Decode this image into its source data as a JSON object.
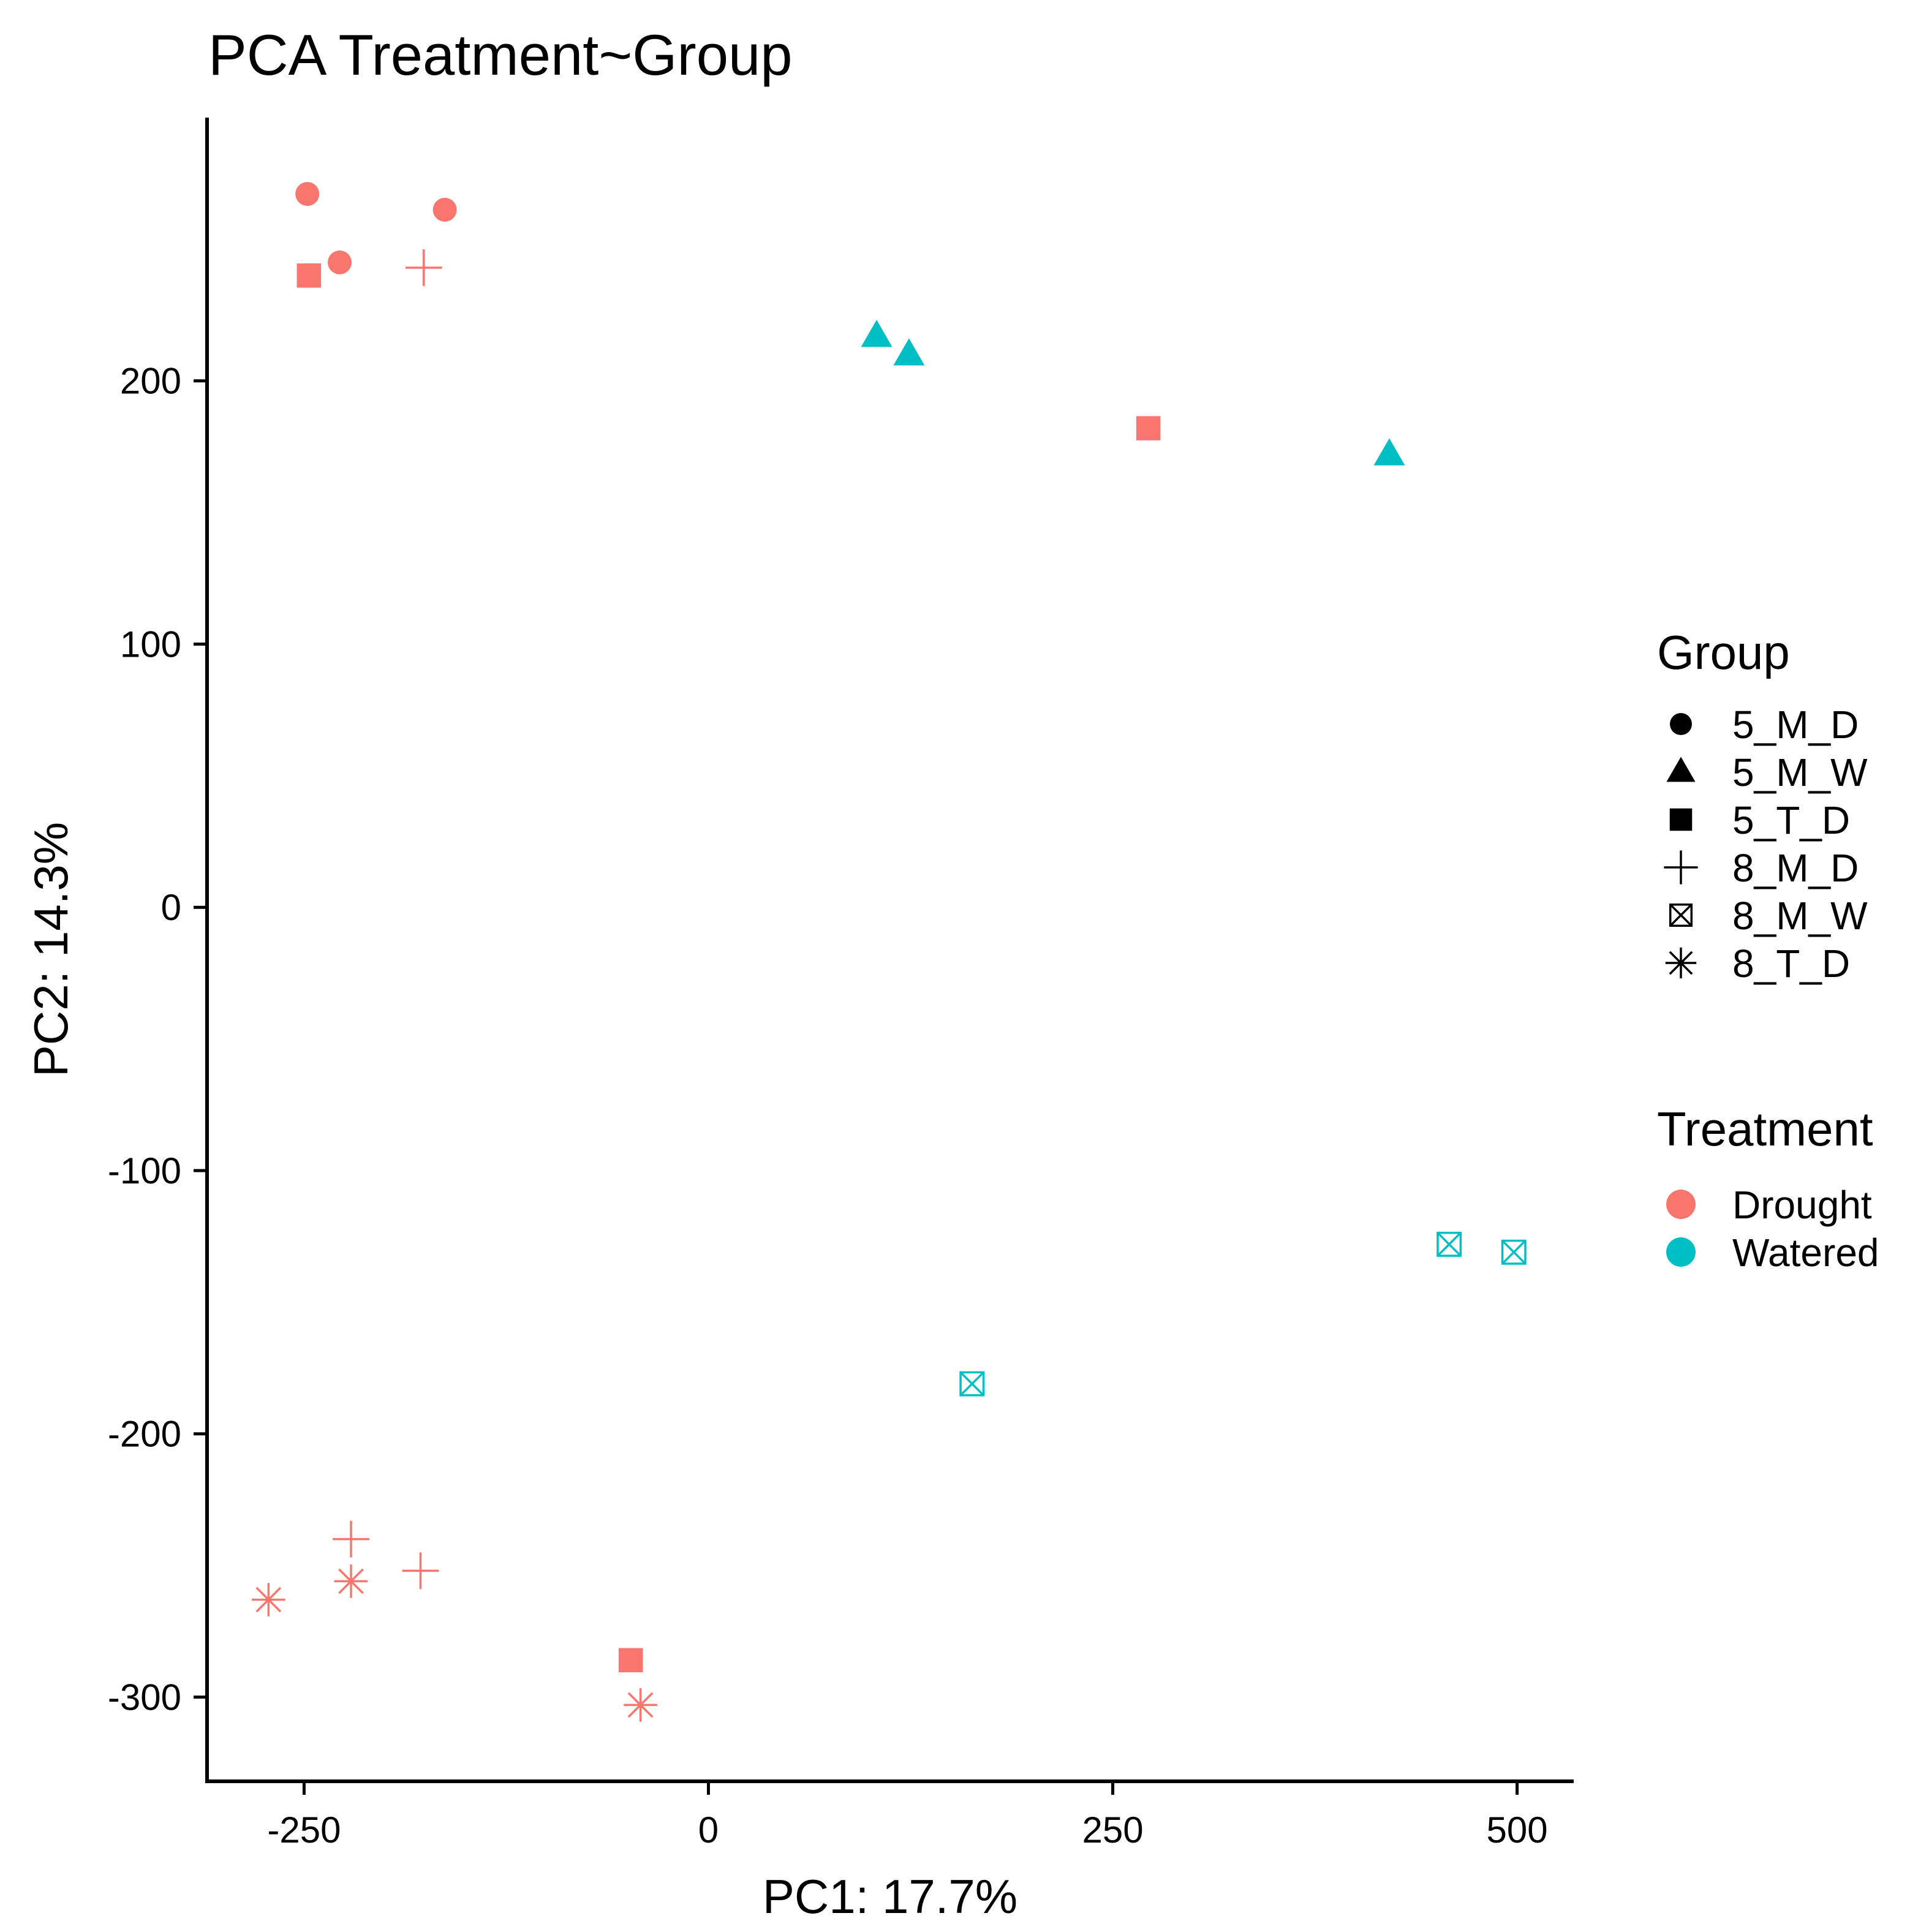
{
  "chart_data": {
    "type": "scatter",
    "title": "PCA Treatment~Group",
    "xlabel": "PC1: 17.7%",
    "ylabel": "PC2: 14.3%",
    "xlim": [
      -310,
      535
    ],
    "ylim": [
      -332,
      300
    ],
    "x_ticks": [
      {
        "value": -250,
        "label": "-250"
      },
      {
        "value": 0,
        "label": "0"
      },
      {
        "value": 250,
        "label": "250"
      },
      {
        "value": 500,
        "label": "500"
      }
    ],
    "y_ticks": [
      {
        "value": 200,
        "label": "200"
      },
      {
        "value": 100,
        "label": "100"
      },
      {
        "value": 0,
        "label": "0"
      },
      {
        "value": -100,
        "label": "-100"
      },
      {
        "value": -200,
        "label": "-200"
      },
      {
        "value": -300,
        "label": "-300"
      }
    ],
    "grid": false,
    "legend_position": "right",
    "legend_group": {
      "title": "Group",
      "items": [
        {
          "label": "5_M_D",
          "shape": "circle"
        },
        {
          "label": "5_M_W",
          "shape": "triangle"
        },
        {
          "label": "5_T_D",
          "shape": "square"
        },
        {
          "label": "8_M_D",
          "shape": "plus"
        },
        {
          "label": "8_M_W",
          "shape": "boxcross"
        },
        {
          "label": "8_T_D",
          "shape": "asterisk"
        }
      ]
    },
    "legend_treatment": {
      "title": "Treatment",
      "items": [
        {
          "label": "Drought",
          "color": "#F8766D"
        },
        {
          "label": "Watered",
          "color": "#00BFC4"
        }
      ]
    },
    "points": [
      {
        "x": -248,
        "y": 271,
        "group": "5_M_D",
        "treatment": "Drought"
      },
      {
        "x": -228,
        "y": 245,
        "group": "5_M_D",
        "treatment": "Drought"
      },
      {
        "x": -163,
        "y": 265,
        "group": "5_M_D",
        "treatment": "Drought"
      },
      {
        "x": -247,
        "y": 240,
        "group": "5_T_D",
        "treatment": "Drought"
      },
      {
        "x": 272,
        "y": 182,
        "group": "5_T_D",
        "treatment": "Drought"
      },
      {
        "x": -48,
        "y": -286,
        "group": "5_T_D",
        "treatment": "Drought"
      },
      {
        "x": -176,
        "y": 243,
        "group": "8_M_D",
        "treatment": "Drought"
      },
      {
        "x": -221,
        "y": -240,
        "group": "8_M_D",
        "treatment": "Drought"
      },
      {
        "x": -178,
        "y": -252,
        "group": "8_M_D",
        "treatment": "Drought"
      },
      {
        "x": -272,
        "y": -263,
        "group": "8_T_D",
        "treatment": "Drought"
      },
      {
        "x": -221,
        "y": -256,
        "group": "8_T_D",
        "treatment": "Drought"
      },
      {
        "x": -42,
        "y": -303,
        "group": "8_T_D",
        "treatment": "Drought"
      },
      {
        "x": 104,
        "y": 217,
        "group": "5_M_W",
        "treatment": "Watered"
      },
      {
        "x": 124,
        "y": 210,
        "group": "5_M_W",
        "treatment": "Watered"
      },
      {
        "x": 421,
        "y": 172,
        "group": "5_M_W",
        "treatment": "Watered"
      },
      {
        "x": 458,
        "y": -128,
        "group": "8_M_W",
        "treatment": "Watered"
      },
      {
        "x": 498,
        "y": -131,
        "group": "8_M_W",
        "treatment": "Watered"
      },
      {
        "x": 163,
        "y": -181,
        "group": "8_M_W",
        "treatment": "Watered"
      }
    ]
  }
}
